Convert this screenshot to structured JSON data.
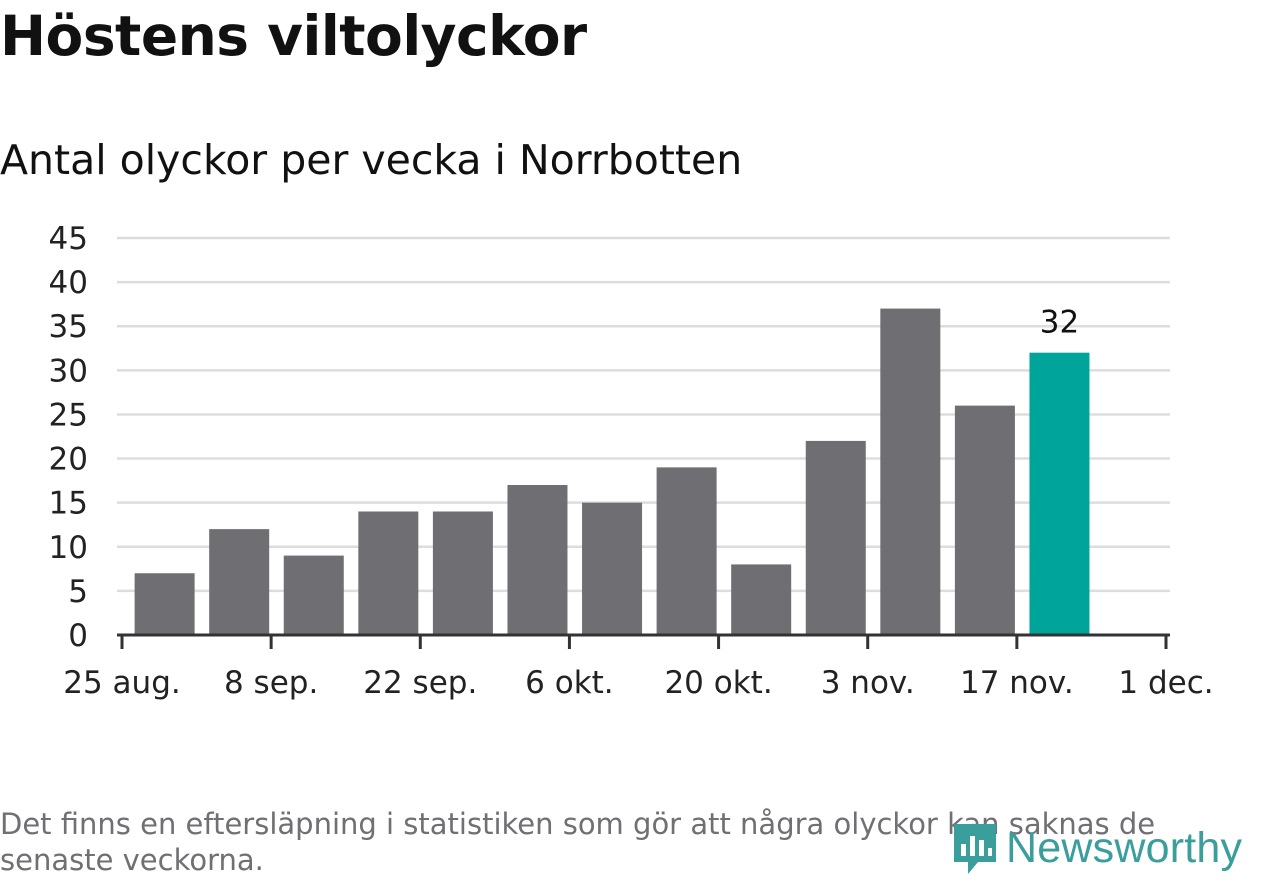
{
  "title": "Höstens viltolyckor",
  "subtitle": "Antal olyckor per vecka i Norrbotten",
  "note": "Det finns en eftersläpning i statistiken som gör att några olyckor kan saknas de senaste veckorna.",
  "brand": {
    "name": "Newsworthy",
    "icon": "newsworthy-logo-icon",
    "color": "#3a9e9c"
  },
  "colors": {
    "bar": "#6e6e73",
    "highlight": "#00a49b",
    "grid": "#dddddd",
    "axis": "#333333"
  },
  "chart_data": {
    "type": "bar",
    "x_axis": "date",
    "x_ticks": [
      "25 aug.",
      "8 sep.",
      "22 sep.",
      "6 okt.",
      "20 okt.",
      "3 nov.",
      "17 nov.",
      "1 dec."
    ],
    "x_tick_dates": [
      "2019-08-25",
      "2019-09-08",
      "2019-09-22",
      "2019-10-06",
      "2019-10-20",
      "2019-11-03",
      "2019-11-17",
      "2019-12-01"
    ],
    "weeks": [
      "2019-08-26",
      "2019-09-02",
      "2019-09-09",
      "2019-09-16",
      "2019-09-23",
      "2019-09-30",
      "2019-10-07",
      "2019-10-14",
      "2019-10-21",
      "2019-10-28",
      "2019-11-04",
      "2019-11-11",
      "2019-11-18"
    ],
    "values": [
      7,
      12,
      9,
      14,
      14,
      17,
      15,
      19,
      8,
      22,
      37,
      26,
      32
    ],
    "highlight": "2019-11-18",
    "data_label": "32",
    "y_ticks": [
      0,
      5,
      10,
      15,
      20,
      25,
      30,
      35,
      40,
      45
    ],
    "ylim": [
      0,
      45
    ],
    "grid": true
  }
}
